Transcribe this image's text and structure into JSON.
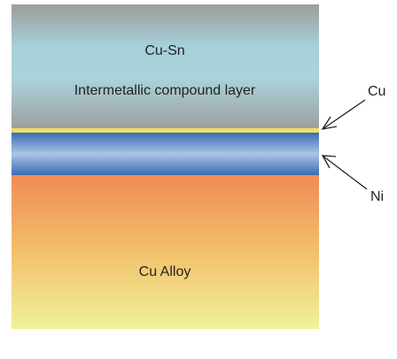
{
  "layers": [
    {
      "label": "Cu-Sn",
      "sublabel": "Intermetallic compound layer"
    },
    {
      "label": "Cu Alloy"
    }
  ],
  "callouts": [
    {
      "label": "Cu"
    },
    {
      "label": "Ni"
    }
  ]
}
